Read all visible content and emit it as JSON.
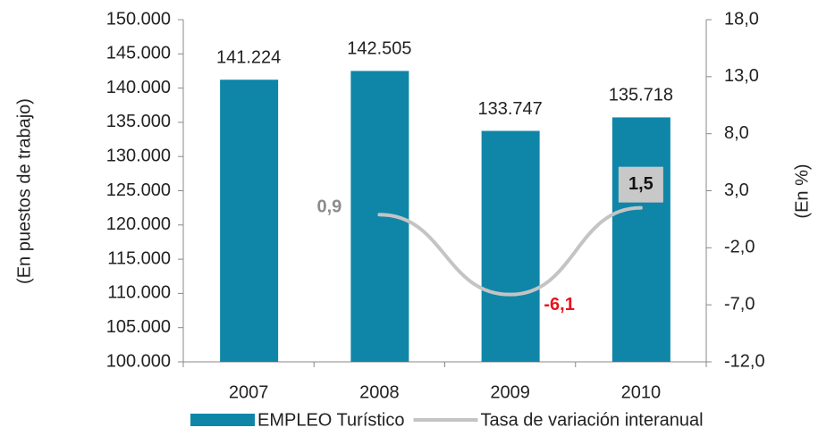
{
  "chart_data": {
    "type": "bar_line",
    "categories": [
      "2007",
      "2008",
      "2009",
      "2010"
    ],
    "ylabel": "(En puestos de trabajo)",
    "y2label": "(En %)",
    "ylim": [
      100000,
      150000
    ],
    "yticks": [
      {
        "value": 100000,
        "label": "100.000"
      },
      {
        "value": 105000,
        "label": "105.000"
      },
      {
        "value": 110000,
        "label": "110.000"
      },
      {
        "value": 115000,
        "label": "115.000"
      },
      {
        "value": 120000,
        "label": "120.000"
      },
      {
        "value": 125000,
        "label": "125.000"
      },
      {
        "value": 130000,
        "label": "130.000"
      },
      {
        "value": 135000,
        "label": "135.000"
      },
      {
        "value": 140000,
        "label": "140.000"
      },
      {
        "value": 145000,
        "label": "145.000"
      },
      {
        "value": 150000,
        "label": "150.000"
      }
    ],
    "y2lim": [
      -12,
      18
    ],
    "y2ticks": [
      {
        "value": -12,
        "label": "-12,0"
      },
      {
        "value": -7,
        "label": "-7,0"
      },
      {
        "value": -2,
        "label": "-2,0"
      },
      {
        "value": 3,
        "label": "3,0"
      },
      {
        "value": 8,
        "label": "8,0"
      },
      {
        "value": 13,
        "label": "13,0"
      },
      {
        "value": 18,
        "label": "18,0"
      }
    ],
    "series": [
      {
        "name": "EMPLEO Turístico",
        "type": "bar",
        "color": "#0f86a8",
        "values": [
          141224,
          142505,
          133747,
          135718
        ],
        "value_labels": [
          "141.224",
          "142.505",
          "133.747",
          "135.718"
        ]
      },
      {
        "name": "Tasa de variación interanual",
        "type": "line",
        "axis": "y2",
        "color": "#c4c4c4",
        "values": [
          null,
          0.9,
          -6.1,
          1.5
        ],
        "value_labels": [
          null,
          "0,9",
          "-6,1",
          "1,5"
        ],
        "label_colors": [
          null,
          "#8c8c8c",
          "#e8141c",
          "#111111"
        ]
      }
    ],
    "legend": "bottom"
  }
}
